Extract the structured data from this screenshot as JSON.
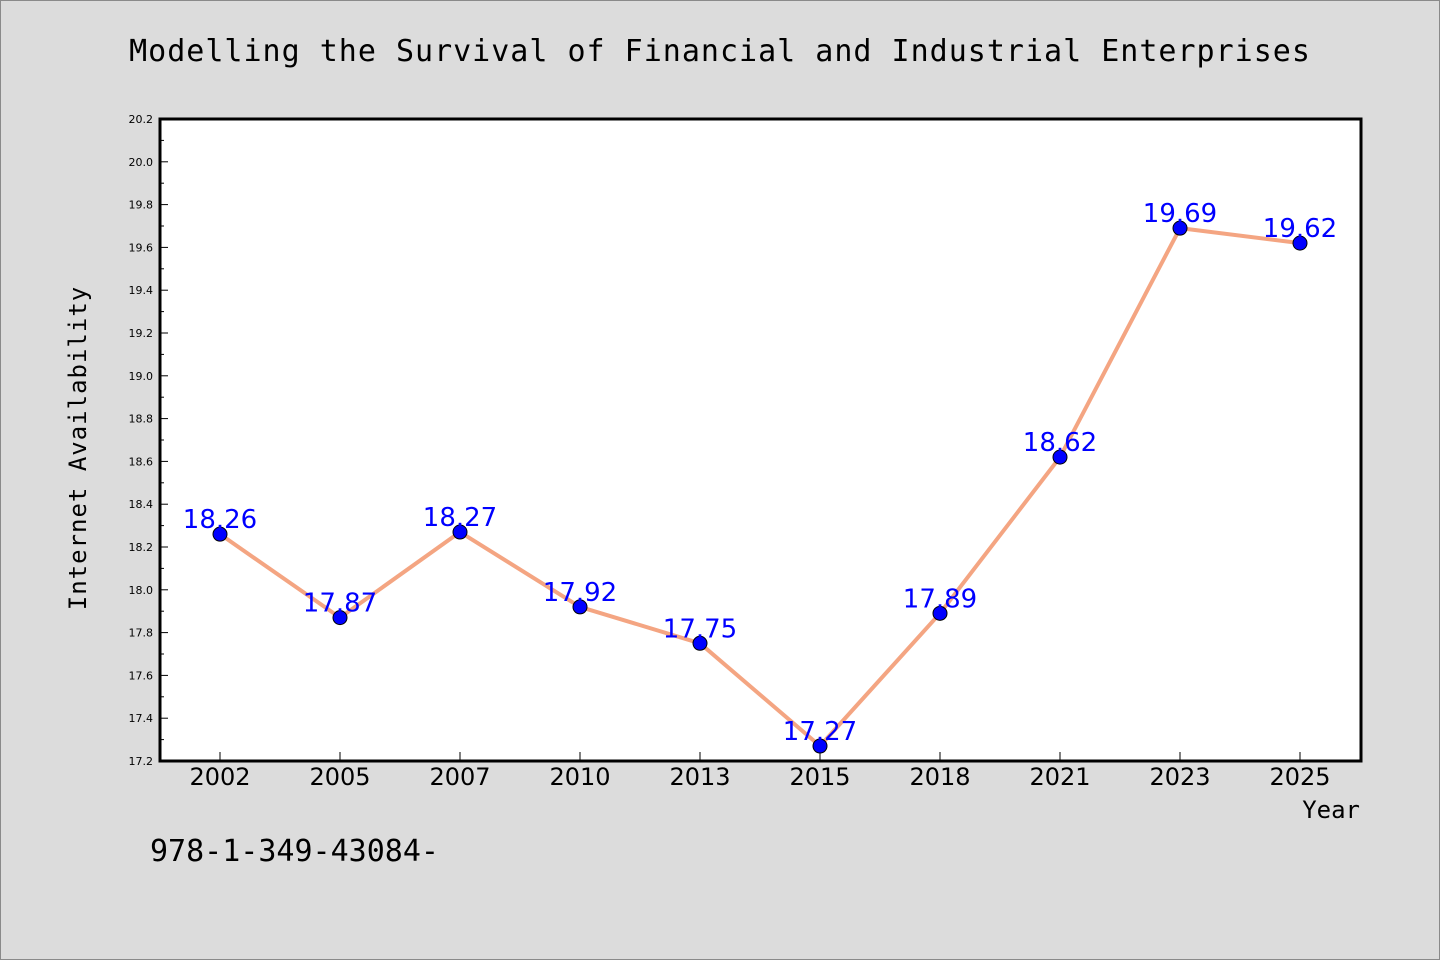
{
  "chart_data": {
    "type": "line",
    "title": "Modelling the Survival of Financial and Industrial Enterprises",
    "xlabel": "Year",
    "ylabel": "Internet Availability",
    "categories": [
      "2002",
      "2005",
      "2007",
      "2010",
      "2013",
      "2015",
      "2018",
      "2021",
      "2023",
      "2025"
    ],
    "series": [
      {
        "values": [
          18.26,
          17.87,
          18.27,
          17.92,
          17.75,
          17.27,
          17.89,
          18.62,
          19.69,
          19.62
        ],
        "labels": [
          "18.26",
          "17.87",
          "18.27",
          "17.92",
          "17.75",
          "17.27",
          "17.89",
          "18.62",
          "19.69",
          "19.62"
        ],
        "line_color": "#f4a582",
        "marker_color": "#0000ff"
      }
    ],
    "ylim": [
      17.2,
      20.2
    ],
    "yticks": [
      17.2,
      17.4,
      17.6,
      17.8,
      18.0,
      18.2,
      18.4,
      18.6,
      18.8,
      19.0,
      19.2,
      19.4,
      19.6,
      19.8,
      20.0,
      20.2
    ],
    "ytick_labels": [
      "17.2",
      "17.4",
      "17.6",
      "17.8",
      "18.0",
      "18.2",
      "18.4",
      "18.6",
      "18.8",
      "19.0",
      "19.2",
      "19.4",
      "19.6",
      "19.8",
      "20.0",
      "20.2"
    ],
    "grid": false,
    "legend": "none"
  },
  "footer_text": "978-1-349-43084-",
  "colors": {
    "background": "#dcdcdc",
    "plot_background": "#ffffff",
    "line": "#f4a582",
    "marker": "#0000ff",
    "data_label": "#0000ff"
  }
}
